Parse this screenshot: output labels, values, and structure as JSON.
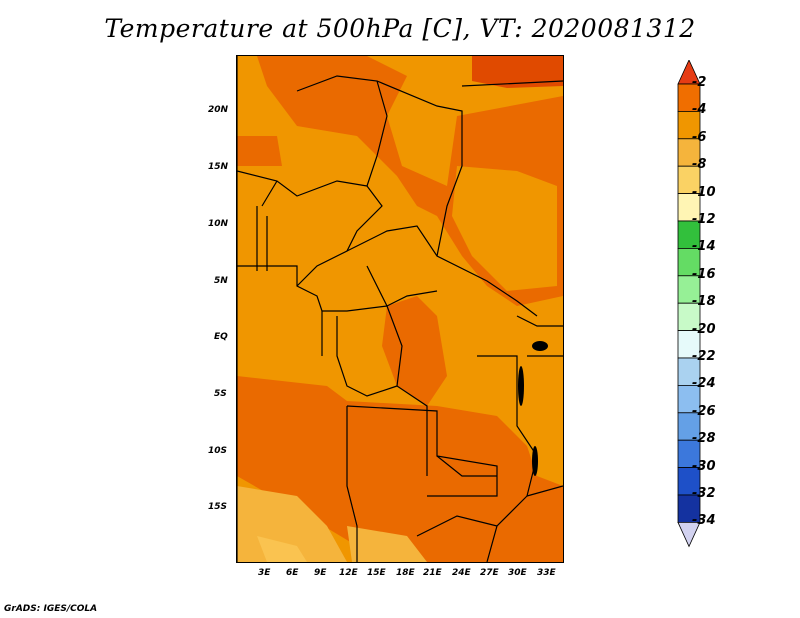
{
  "title": "Temperature at 500hPa [C], VT: 2020081312",
  "footer": "GrADS: IGES/COLA",
  "map": {
    "lat_labels": [
      "20N",
      "15N",
      "10N",
      "5N",
      "EQ",
      "5S",
      "10S",
      "15S"
    ],
    "lon_labels": [
      "3E",
      "6E",
      "9E",
      "12E",
      "15E",
      "18E",
      "21E",
      "24E",
      "27E",
      "30E",
      "33E"
    ],
    "colors": {
      "gt_-4": "#e65500",
      "-4_-6": "#f07d00",
      "-6_-8": "#f5a01e",
      "-8_-10": "#fac350"
    }
  },
  "colorbar": {
    "labels": [
      "-2",
      "-4",
      "-6",
      "-8",
      "-10",
      "-12",
      "-14",
      "-16",
      "-18",
      "-20",
      "-22",
      "-24",
      "-26",
      "-28",
      "-30",
      "-32",
      "-34"
    ],
    "colors": [
      "#e63c14",
      "#f06e00",
      "#f09600",
      "#f5b43c",
      "#fad264",
      "#fff5b4",
      "#32c03c",
      "#64dc64",
      "#96f096",
      "#c8fac8",
      "#e6fafa",
      "#aad2f0",
      "#8cbef0",
      "#64a0e6",
      "#3c78dc",
      "#1e50c8",
      "#1432a0",
      "#0a1464"
    ],
    "end_colors": [
      "#e63c14",
      "#d2d2f0"
    ]
  }
}
